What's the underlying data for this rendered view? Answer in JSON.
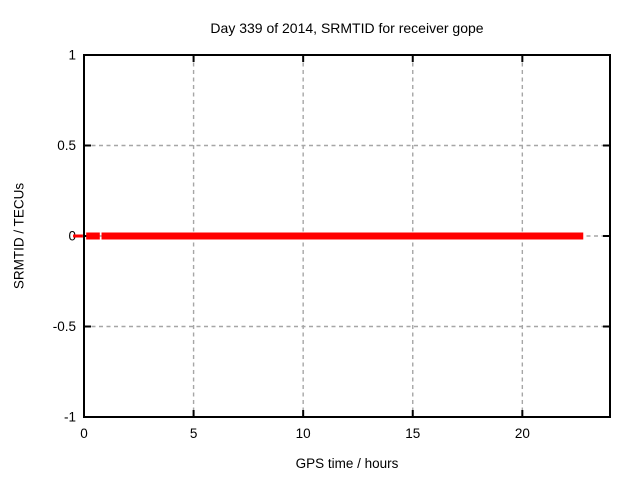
{
  "chart_data": {
    "type": "line",
    "title": "Day 339 of 2014, SRMTID for receiver gope",
    "xlabel": "GPS time / hours",
    "ylabel": "SRMTID / TECUs",
    "xlim": [
      0,
      24
    ],
    "ylim": [
      -1,
      1
    ],
    "xticks": [
      0,
      5,
      10,
      15,
      20
    ],
    "xtick_labels": [
      "0",
      "5",
      "10",
      "15",
      "20"
    ],
    "yticks": [
      1,
      0.5,
      0,
      -0.5,
      -1
    ],
    "ytick_labels": [
      "1",
      "0.5",
      "0",
      "-0.5",
      "-1"
    ],
    "grid": true,
    "grid_color": "#a6a6a6",
    "border_color": "#000000",
    "background": "#ffffff",
    "legend": "none",
    "series": [
      {
        "name": "SRMTID",
        "color": "#ff0000",
        "y_value": 0,
        "segments_x_hours": [
          [
            0.1,
            0.72
          ],
          [
            0.8,
            22.78
          ]
        ],
        "left_edge_dash_x_hours": [
          -0.5,
          -0.05
        ],
        "description": "constant zero SRMTID value across the whole day"
      }
    ]
  }
}
